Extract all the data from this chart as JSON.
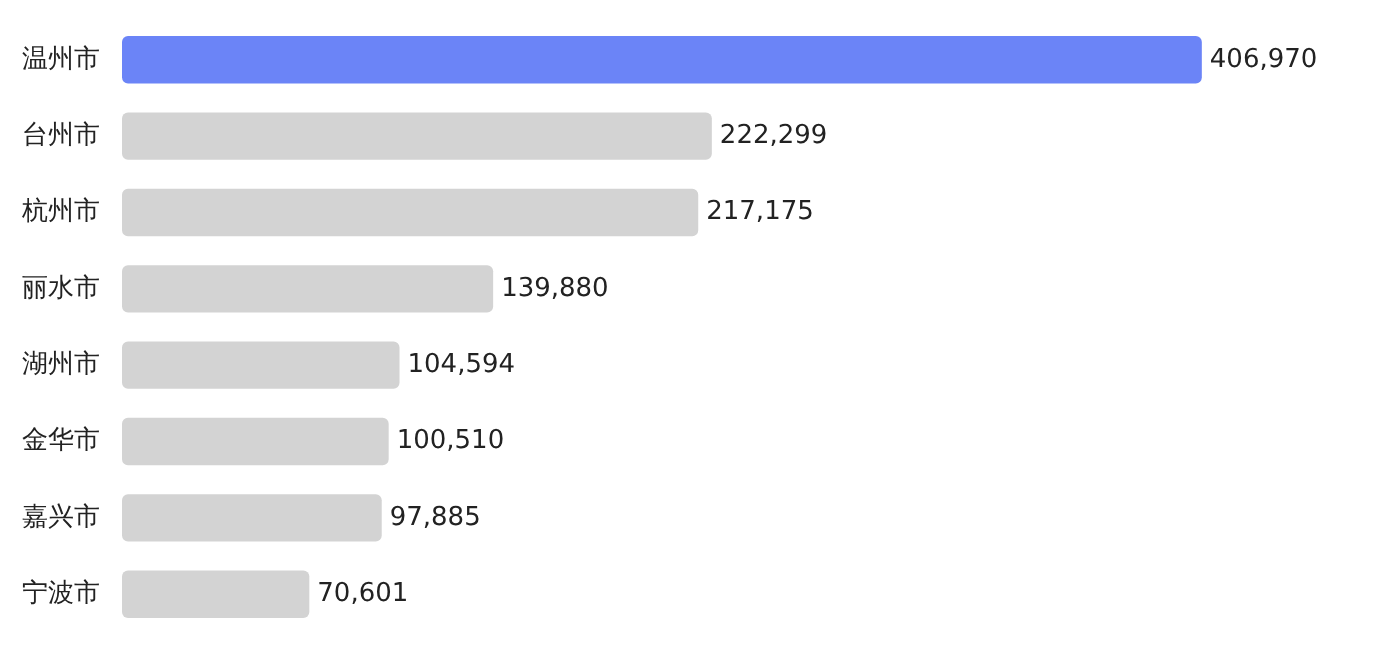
{
  "chart_data": {
    "type": "bar",
    "orientation": "horizontal",
    "categories": [
      "温州市",
      "台州市",
      "杭州市",
      "丽水市",
      "湖州市",
      "金华市",
      "嘉兴市",
      "宁波市"
    ],
    "values": [
      406970,
      222299,
      217175,
      139880,
      104594,
      100510,
      97885,
      70601
    ],
    "colors": [
      "#6b84f7",
      "#d3d3d3",
      "#d3d3d3",
      "#d3d3d3",
      "#d3d3d3",
      "#d3d3d3",
      "#d3d3d3",
      "#d3d3d3"
    ],
    "value_labels": [
      "406,970",
      "222,299",
      "217,175",
      "139,880",
      "104,594",
      "100,510",
      "97,885",
      "70,601"
    ],
    "legend": false
  }
}
